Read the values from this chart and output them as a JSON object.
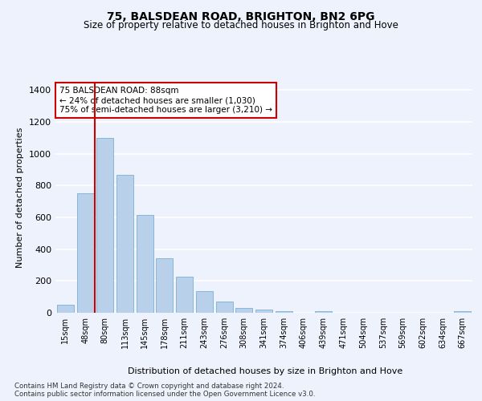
{
  "title1": "75, BALSDEAN ROAD, BRIGHTON, BN2 6PG",
  "title2": "Size of property relative to detached houses in Brighton and Hove",
  "xlabel": "Distribution of detached houses by size in Brighton and Hove",
  "ylabel": "Number of detached properties",
  "footnote1": "Contains HM Land Registry data © Crown copyright and database right 2024.",
  "footnote2": "Contains public sector information licensed under the Open Government Licence v3.0.",
  "bar_labels": [
    "15sqm",
    "48sqm",
    "80sqm",
    "113sqm",
    "145sqm",
    "178sqm",
    "211sqm",
    "243sqm",
    "276sqm",
    "308sqm",
    "341sqm",
    "374sqm",
    "406sqm",
    "439sqm",
    "471sqm",
    "504sqm",
    "537sqm",
    "569sqm",
    "602sqm",
    "634sqm",
    "667sqm"
  ],
  "bar_heights": [
    50,
    750,
    1100,
    870,
    615,
    345,
    225,
    135,
    70,
    30,
    20,
    10,
    0,
    10,
    0,
    0,
    0,
    0,
    0,
    0,
    10
  ],
  "bar_color": "#b8d0ea",
  "bar_edge_color": "#7aafd4",
  "vline_color": "#cc0000",
  "annotation_text": "75 BALSDEAN ROAD: 88sqm\n← 24% of detached houses are smaller (1,030)\n75% of semi-detached houses are larger (3,210) →",
  "annotation_box_color": "#ffffff",
  "annotation_box_edge": "#cc0000",
  "ylim": [
    0,
    1450
  ],
  "yticks": [
    0,
    200,
    400,
    600,
    800,
    1000,
    1200,
    1400
  ],
  "background_color": "#eef2fc",
  "grid_color": "#ffffff",
  "fig_width": 6.0,
  "fig_height": 5.0
}
